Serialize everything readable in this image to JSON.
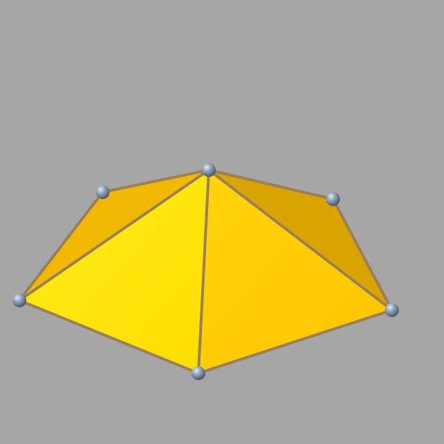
{
  "shape": {
    "face_color": "#ffd20a",
    "edge_color": "#9b7f58",
    "vertex_color": "#8a9cb0",
    "background_color": "#a6a6a6"
  }
}
